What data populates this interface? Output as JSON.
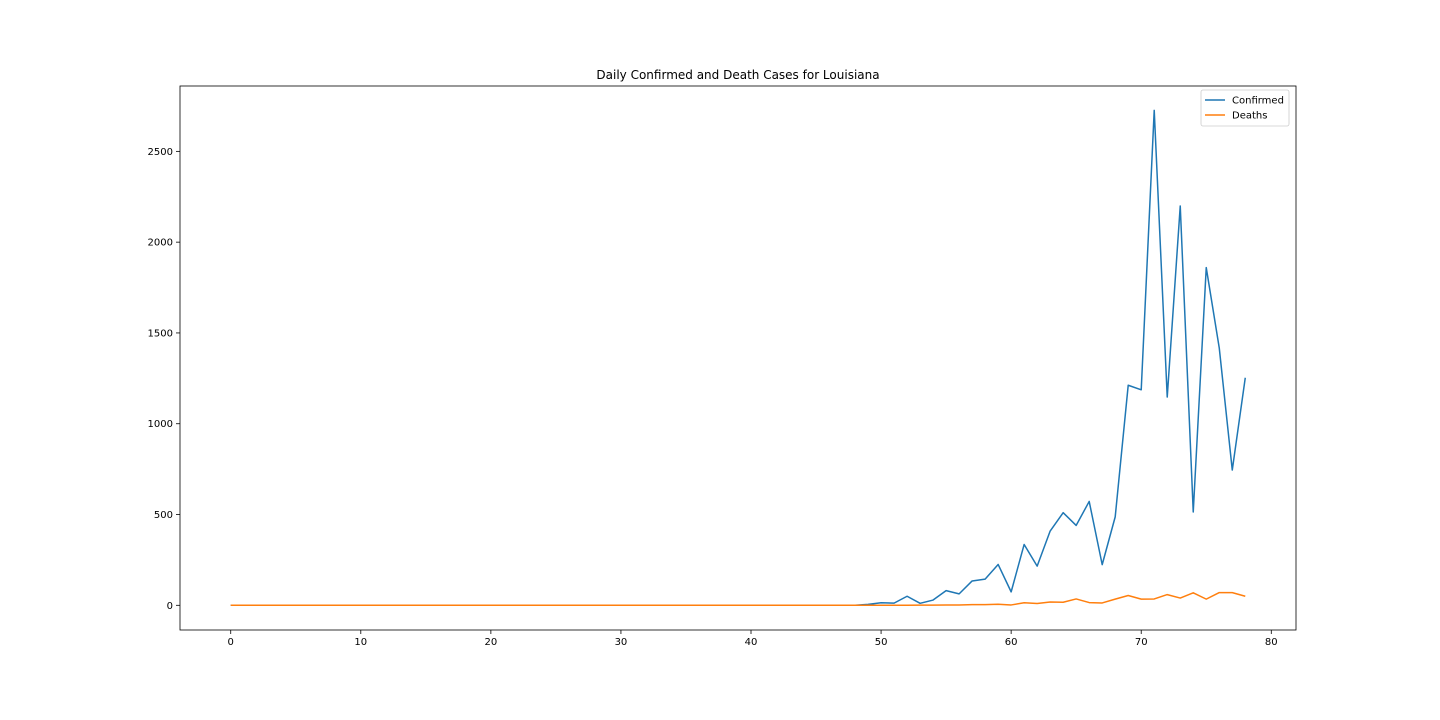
{
  "chart_data": {
    "type": "line",
    "title": "Daily Confirmed and Death Cases for Louisiana",
    "xlabel": "",
    "ylabel": "",
    "xlim": [
      -3.9,
      81.9
    ],
    "ylim": [
      -136,
      2860
    ],
    "xticks": [
      0,
      10,
      20,
      30,
      40,
      50,
      60,
      70,
      80
    ],
    "yticks": [
      0,
      500,
      1000,
      1500,
      2000,
      2500
    ],
    "grid": false,
    "legend_position": "top-right",
    "series": [
      {
        "name": "Confirmed",
        "color": "#1f77b4",
        "x": [
          0,
          1,
          2,
          3,
          4,
          5,
          6,
          7,
          8,
          9,
          10,
          11,
          12,
          13,
          14,
          15,
          16,
          17,
          18,
          19,
          20,
          21,
          22,
          23,
          24,
          25,
          26,
          27,
          28,
          29,
          30,
          31,
          32,
          33,
          34,
          35,
          36,
          37,
          38,
          39,
          40,
          41,
          42,
          43,
          44,
          45,
          46,
          47,
          48,
          49,
          50,
          51,
          52,
          53,
          54,
          55,
          56,
          57,
          58,
          59,
          60,
          61,
          62,
          63,
          64,
          65,
          66,
          67,
          68,
          69,
          70,
          71,
          72,
          73,
          74,
          75,
          76,
          77,
          78
        ],
        "values": [
          0,
          0,
          0,
          0,
          0,
          0,
          0,
          0,
          0,
          0,
          0,
          0,
          0,
          0,
          0,
          0,
          0,
          0,
          0,
          0,
          0,
          0,
          0,
          0,
          0,
          0,
          0,
          0,
          0,
          0,
          0,
          0,
          0,
          0,
          0,
          0,
          0,
          0,
          0,
          0,
          0,
          0,
          0,
          0,
          0,
          0,
          0,
          0,
          0,
          5,
          14,
          12,
          50,
          11,
          29,
          81,
          63,
          134,
          144,
          225,
          74,
          335,
          216,
          409,
          510,
          440,
          572,
          224,
          487,
          1212,
          1187,
          2726,
          1147,
          2199,
          514,
          1860,
          1417,
          745,
          1253
        ]
      },
      {
        "name": "Deaths",
        "color": "#ff7f0e",
        "x": [
          0,
          1,
          2,
          3,
          4,
          5,
          6,
          7,
          8,
          9,
          10,
          11,
          12,
          13,
          14,
          15,
          16,
          17,
          18,
          19,
          20,
          21,
          22,
          23,
          24,
          25,
          26,
          27,
          28,
          29,
          30,
          31,
          32,
          33,
          34,
          35,
          36,
          37,
          38,
          39,
          40,
          41,
          42,
          43,
          44,
          45,
          46,
          47,
          48,
          49,
          50,
          51,
          52,
          53,
          54,
          55,
          56,
          57,
          58,
          59,
          60,
          61,
          62,
          63,
          64,
          65,
          66,
          67,
          68,
          69,
          70,
          71,
          72,
          73,
          74,
          75,
          76,
          77,
          78
        ],
        "values": [
          0,
          0,
          0,
          0,
          0,
          0,
          0,
          0,
          0,
          0,
          0,
          0,
          0,
          0,
          0,
          0,
          0,
          0,
          0,
          0,
          0,
          0,
          0,
          0,
          0,
          0,
          0,
          0,
          0,
          0,
          0,
          0,
          0,
          0,
          0,
          0,
          0,
          0,
          0,
          0,
          0,
          0,
          0,
          0,
          0,
          0,
          0,
          0,
          0,
          0,
          0,
          0,
          0,
          1,
          1,
          2,
          2,
          4,
          4,
          6,
          2,
          14,
          10,
          18,
          17,
          35,
          15,
          13,
          34,
          54,
          34,
          35,
          59,
          40,
          69,
          34,
          70,
          70,
          50
        ]
      }
    ]
  }
}
